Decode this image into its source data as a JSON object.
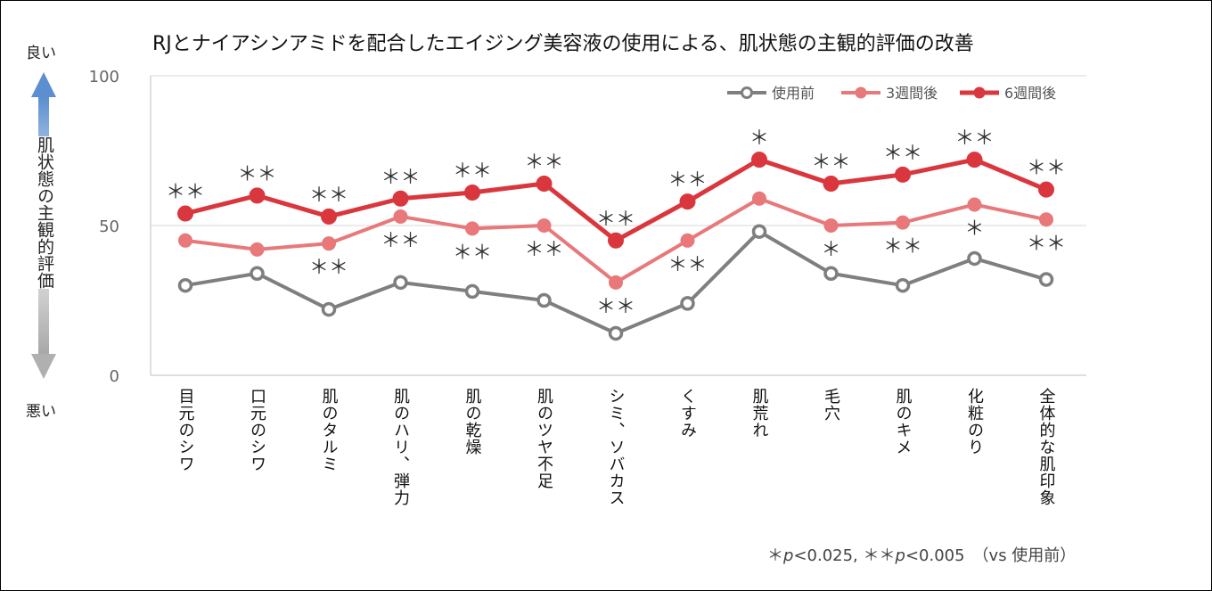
{
  "title": "RJとナイアシンアミドを配合したエイジング美容液の使用による、肌状態の主観的評価の改善",
  "axis_words": {
    "good": "良い",
    "bad": "悪い",
    "y_title": "肌状態の主観的評価"
  },
  "footnote": {
    "star1": "＊",
    "p1": "p",
    "v1": "<0.025, ",
    "star2": "＊＊",
    "p2": "p",
    "v2": "<0.005　（vs 使用前）"
  },
  "colors": {
    "before": "#7f7f7f",
    "w3": "#e8787a",
    "w6": "#d9373d",
    "grid": "#d9d9d9"
  },
  "chart_data": {
    "type": "line",
    "title": "RJとナイアシンアミドを配合したエイジング美容液の使用による、肌状態の主観的評価の改善",
    "ylim": [
      0,
      100
    ],
    "yticks": [
      "0",
      "50",
      "100"
    ],
    "legend_position": "top-right",
    "categories": [
      "目元のシワ",
      "口元のシワ",
      "肌のタルミ",
      "肌のハリ、弾力",
      "肌の乾燥",
      "肌のツヤ不足",
      "シミ、ソバカス",
      "くすみ",
      "肌荒れ",
      "毛穴",
      "肌のキメ",
      "化粧のり",
      "全体的な肌印象"
    ],
    "series": [
      {
        "name": "使用前",
        "color": "#7f7f7f",
        "values": [
          30,
          34,
          22,
          31,
          28,
          25,
          14,
          24,
          48,
          34,
          30,
          39,
          32
        ],
        "marks": [
          "",
          "",
          "",
          "",
          "",
          "",
          "",
          "",
          "",
          "",
          "",
          "",
          ""
        ]
      },
      {
        "name": "3週間後",
        "color": "#e8787a",
        "values": [
          45,
          42,
          44,
          53,
          49,
          50,
          31,
          45,
          59,
          50,
          51,
          57,
          52
        ],
        "marks": [
          "",
          "",
          "＊＊",
          "＊＊",
          "＊＊",
          "＊＊",
          "＊＊",
          "＊＊",
          "",
          "＊",
          "＊＊",
          "＊",
          "＊＊"
        ]
      },
      {
        "name": "6週間後",
        "color": "#d9373d",
        "values": [
          54,
          60,
          53,
          59,
          61,
          64,
          45,
          58,
          72,
          64,
          67,
          72,
          62
        ],
        "marks": [
          "＊＊",
          "＊＊",
          "＊＊",
          "＊＊",
          "＊＊",
          "＊＊",
          "＊＊",
          "＊＊",
          "＊",
          "＊＊",
          "＊＊",
          "＊＊",
          "＊＊"
        ]
      }
    ]
  }
}
